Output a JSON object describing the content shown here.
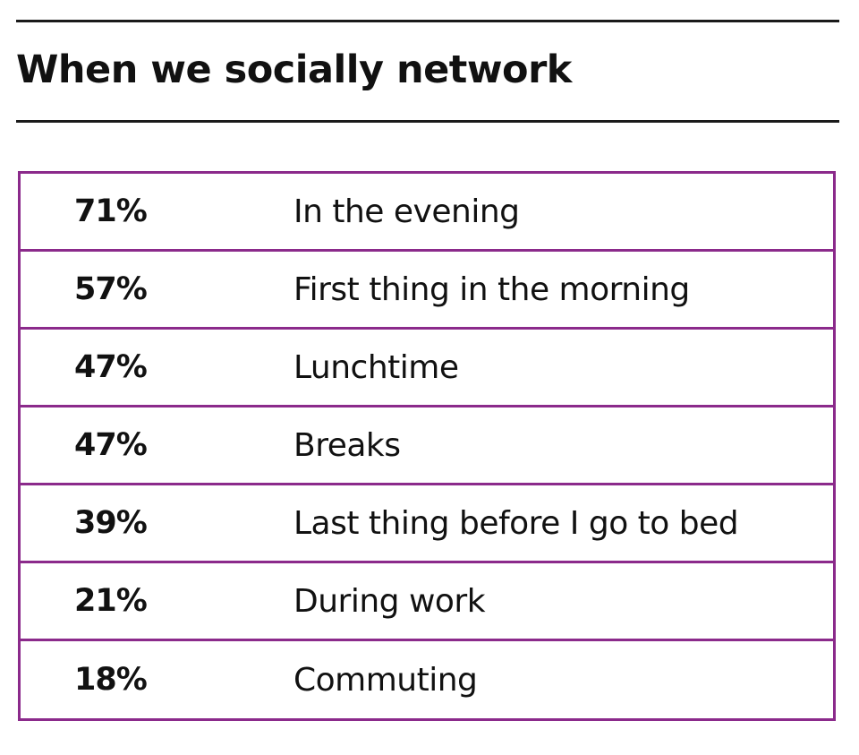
{
  "colors": {
    "accent": "#8b2a8b",
    "rule": "#1a1a1a",
    "text": "#111111"
  },
  "chart_data": {
    "type": "table",
    "title": "When we socially network",
    "rows": [
      {
        "value": "71%",
        "label": "In the evening"
      },
      {
        "value": "57%",
        "label": "First thing in the morning"
      },
      {
        "value": "47%",
        "label": "Lunchtime"
      },
      {
        "value": "47%",
        "label": "Breaks"
      },
      {
        "value": "39%",
        "label": "Last thing before I go to bed"
      },
      {
        "value": "21%",
        "label": "During work"
      },
      {
        "value": "18%",
        "label": "Commuting"
      }
    ]
  }
}
